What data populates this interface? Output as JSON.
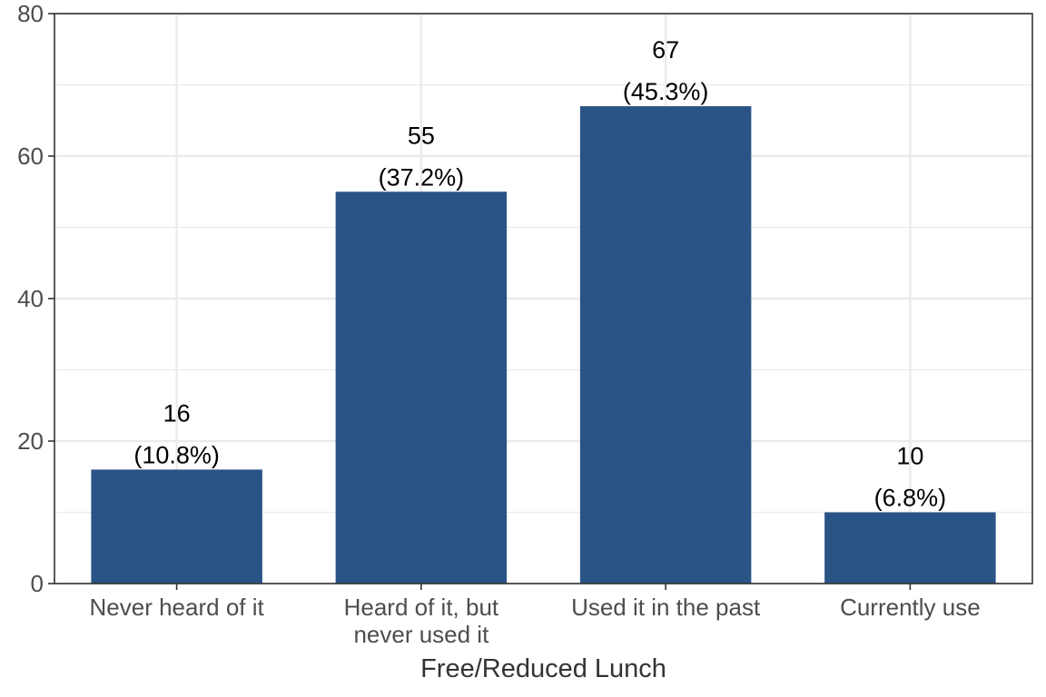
{
  "chart_data": {
    "type": "bar",
    "categories": [
      [
        "Never heard of it"
      ],
      [
        "Heard of it, but",
        "never used it"
      ],
      [
        "Used it in the past"
      ],
      [
        "Currently use"
      ]
    ],
    "values": [
      16,
      55,
      67,
      10
    ],
    "percent_labels": [
      "(10.8%)",
      "(37.2%)",
      "(45.3%)",
      "(6.8%)"
    ],
    "title": "",
    "xlabel": "Free/Reduced Lunch",
    "ylabel": "",
    "ylim": [
      0,
      80
    ],
    "yticks": [
      0,
      20,
      40,
      60,
      80
    ],
    "grid": true,
    "bar_color": "#2a5386",
    "panel_border_color": "#333333",
    "grid_color": "#ebebeb"
  }
}
